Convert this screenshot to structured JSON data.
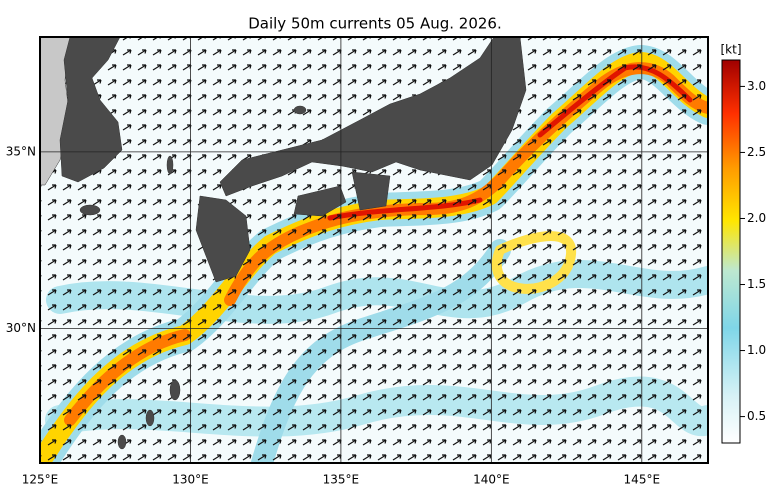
{
  "chart_data": {
    "type": "map",
    "title": "Daily 50m currents 05 Aug. 2026.",
    "xlim": [
      125,
      147.2
    ],
    "ylim": [
      26.2,
      38.25
    ],
    "xticks": [
      {
        "value": 125,
        "label": "125°E"
      },
      {
        "value": 130,
        "label": "130°E"
      },
      {
        "value": 135,
        "label": "135°E"
      },
      {
        "value": 140,
        "label": "140°E"
      },
      {
        "value": 145,
        "label": "145°E"
      }
    ],
    "yticks": [
      {
        "value": 30,
        "label": "30°N"
      },
      {
        "value": 35,
        "label": "35°N"
      }
    ],
    "grid": true,
    "colorbar": {
      "label": "[kt]",
      "lim": [
        0.3,
        3.2
      ],
      "ticks": [
        0.5,
        {
          "value": 1,
          "label": "1.0"
        },
        1.5,
        {
          "value": 2,
          "label": "2.0"
        },
        2.5,
        {
          "value": 3,
          "label": "3.0"
        }
      ]
    }
  }
}
